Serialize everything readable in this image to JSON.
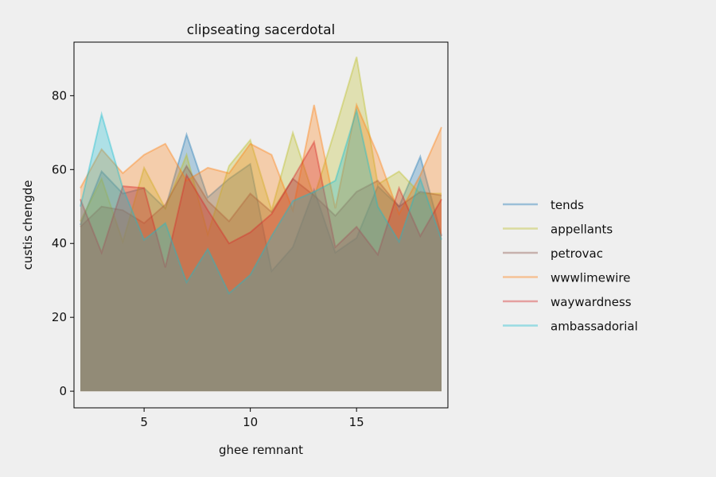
{
  "chart_data": {
    "type": "area",
    "title": "clipseating sacerdotal",
    "xlabel": "ghee remnant",
    "ylabel": "custis chengde",
    "xlim": [
      1.7,
      19.3
    ],
    "ylim": [
      -4.5,
      94.5
    ],
    "xticks": [
      5,
      10,
      15
    ],
    "yticks": [
      0,
      20,
      40,
      60,
      80
    ],
    "grid": false,
    "legend_position": "right",
    "x": [
      2,
      3,
      4,
      5,
      6,
      7,
      8,
      9,
      10,
      11,
      12,
      13,
      14,
      15,
      16,
      17,
      18,
      19
    ],
    "series": [
      {
        "name": "tends",
        "color": "#1f77b4",
        "values": [
          45,
          59.5,
          53.5,
          55,
          49.5,
          69.5,
          52.5,
          57.5,
          61.5,
          32.5,
          39,
          54.5,
          37.5,
          41.5,
          55.5,
          50,
          63.5,
          42
        ]
      },
      {
        "name": "appellants",
        "color": "#bcbd22",
        "values": [
          46,
          57.5,
          40.5,
          60.5,
          49.5,
          64,
          42.5,
          61,
          68,
          49,
          70,
          52.5,
          71,
          90.5,
          56,
          59.5,
          53.5,
          53.5
        ]
      },
      {
        "name": "petrovac",
        "color": "#8c564b",
        "values": [
          44.5,
          50,
          49,
          45.5,
          50.5,
          61,
          51.5,
          46,
          53.5,
          48.5,
          57.5,
          53,
          47.5,
          54,
          57,
          50,
          54,
          53
        ]
      },
      {
        "name": "wwwlimewire",
        "color": "#ff7f0e",
        "values": [
          55,
          65.5,
          59,
          64,
          67,
          57,
          60.5,
          59,
          67,
          64,
          49,
          77.5,
          49.5,
          77.5,
          64,
          48,
          58.5,
          71.5
        ]
      },
      {
        "name": "waywardness",
        "color": "#d62728",
        "values": [
          52,
          37.5,
          55.5,
          55,
          33.5,
          58.5,
          49,
          40,
          43,
          48,
          57.5,
          67.5,
          39,
          44.5,
          37,
          55,
          42,
          52
        ]
      },
      {
        "name": "ambassadorial",
        "color": "#17becf",
        "values": [
          50,
          75,
          55,
          41,
          45.5,
          29.5,
          38.5,
          26.5,
          31.5,
          42,
          51.5,
          54,
          57,
          76,
          50,
          40.5,
          57.5,
          41
        ]
      }
    ]
  }
}
